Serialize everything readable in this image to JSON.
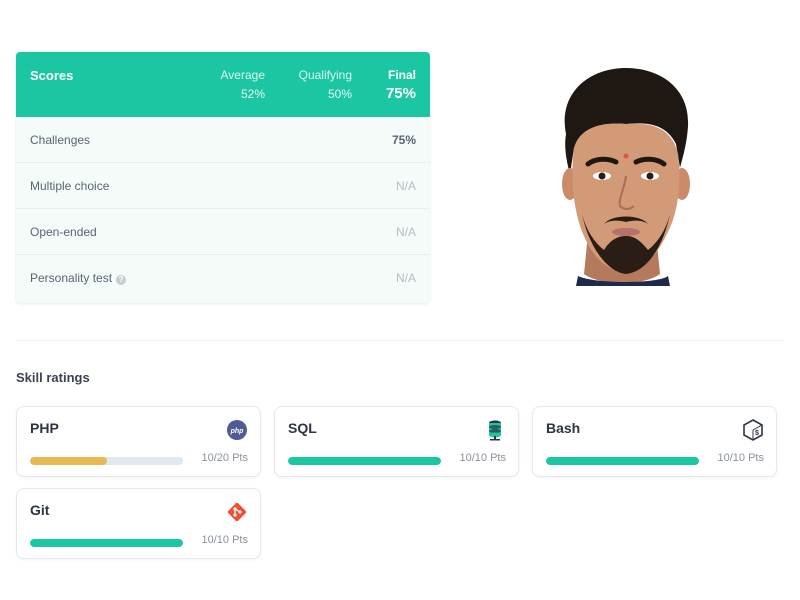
{
  "scores": {
    "title": "Scores",
    "average": {
      "label": "Average",
      "value": "52%"
    },
    "qualifying": {
      "label": "Qualifying",
      "value": "50%"
    },
    "final": {
      "label": "Final",
      "value": "75%"
    },
    "rows": [
      {
        "name": "Challenges",
        "value": "75%"
      },
      {
        "name": "Multiple choice",
        "value": "N/A"
      },
      {
        "name": "Open-ended",
        "value": "N/A"
      },
      {
        "name": "Personality test",
        "value": "N/A",
        "help_icon": "help-icon"
      }
    ]
  },
  "skills": {
    "title": "Skill ratings",
    "items": [
      {
        "name": "PHP",
        "points": "10/20 Pts",
        "progress": 0.5,
        "color": "#e8b953",
        "icon": "php-icon"
      },
      {
        "name": "SQL",
        "points": "10/10 Pts",
        "progress": 1.0,
        "color": "#1bc7a2",
        "icon": "database-icon"
      },
      {
        "name": "Bash",
        "points": "10/10 Pts",
        "progress": 1.0,
        "color": "#1bc7a2",
        "icon": "bash-icon"
      },
      {
        "name": "Git",
        "points": "10/10 Pts",
        "progress": 1.0,
        "color": "#1bc7a2",
        "icon": "git-icon"
      }
    ]
  },
  "colors": {
    "accent": "#1bc7a2",
    "warning": "#e8b953",
    "track": "#e1e8f0"
  }
}
